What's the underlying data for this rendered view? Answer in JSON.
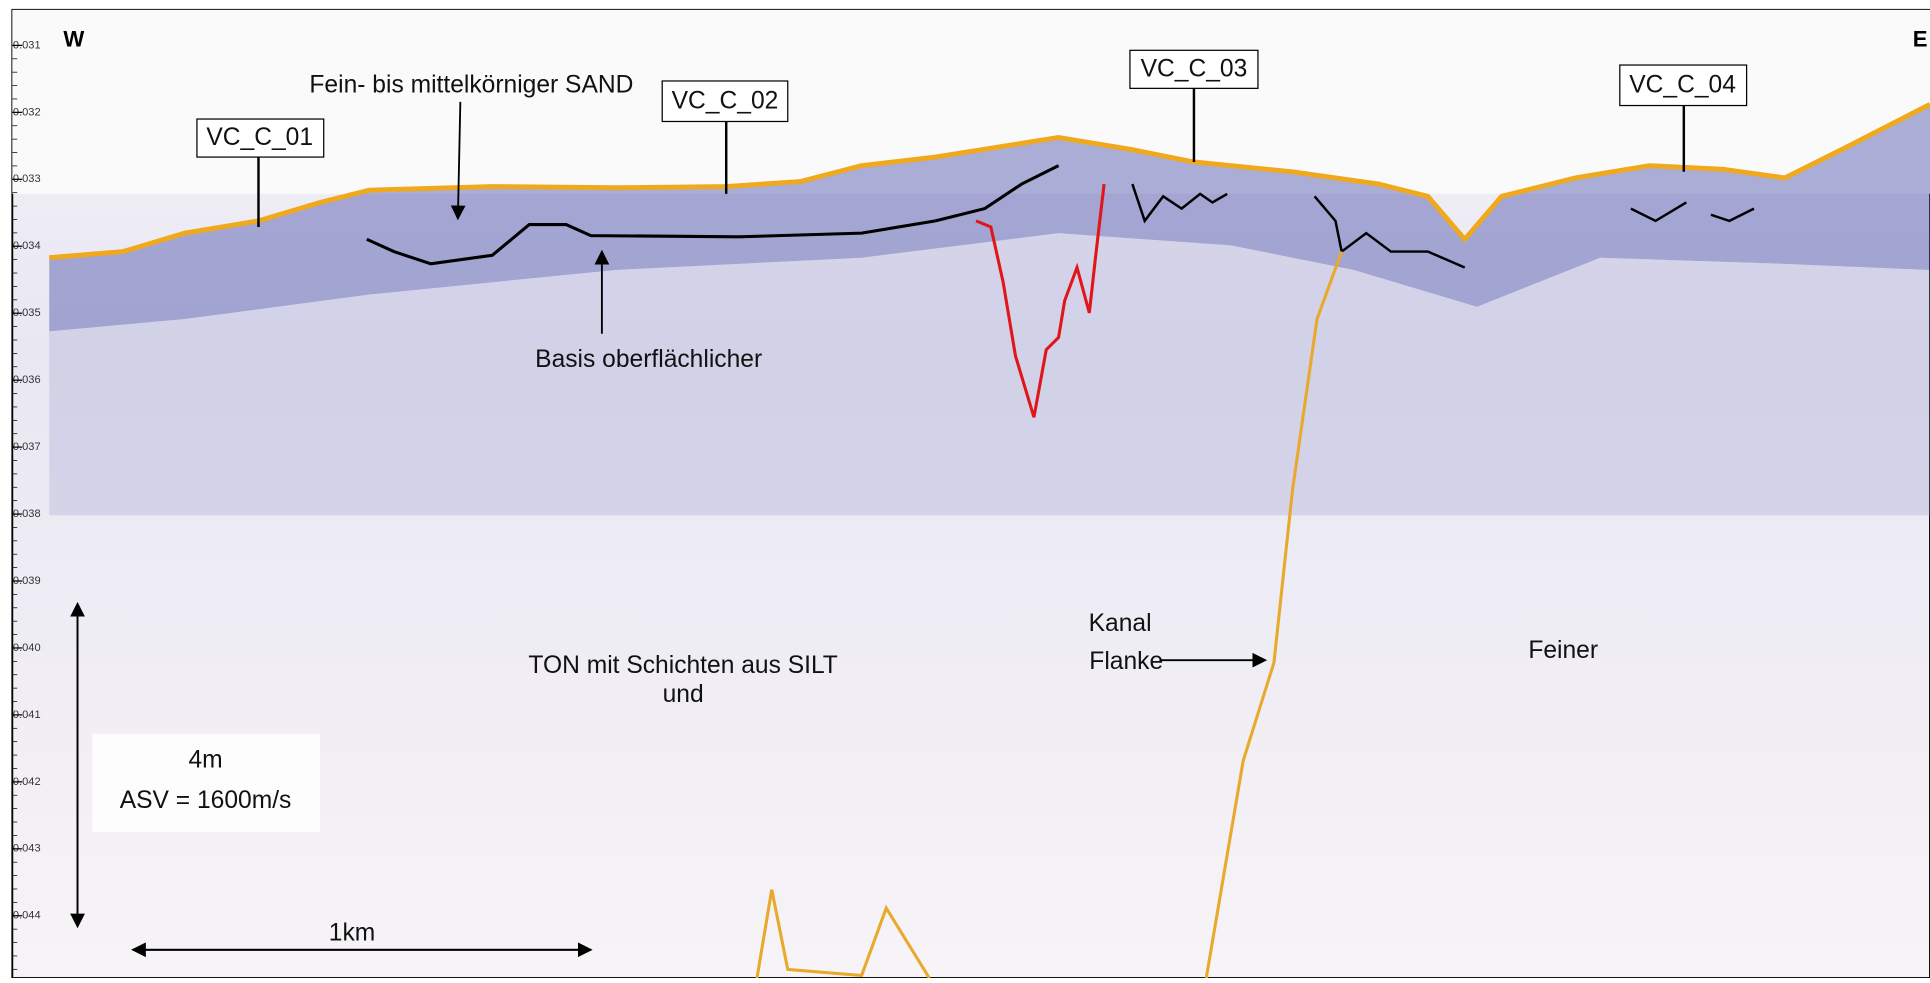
{
  "profile": {
    "west": "W",
    "east": "E",
    "axis_ticks": [
      "0.031",
      "0.032",
      "0.033",
      "0.034",
      "0.035",
      "0.036",
      "0.037",
      "0.038",
      "0.039",
      "0.040",
      "0.041",
      "0.042",
      "0.043",
      "0.044"
    ],
    "cores": [
      "VC_C_01",
      "VC_C_02",
      "VC_C_03",
      "VC_C_04"
    ],
    "annotations": {
      "sand": "Fein- bis mittelkörniger SAND",
      "basis": "Basis oberflächlicher",
      "ton_line1": "TON mit Schichten aus SILT",
      "ton_line2": "und",
      "kanal": "Kanal",
      "flanke": "Flanke",
      "feiner": "Feiner"
    },
    "scale": {
      "vertical": "4m",
      "velocity": "ASV = 1600m/s",
      "horizontal": "1km"
    }
  }
}
